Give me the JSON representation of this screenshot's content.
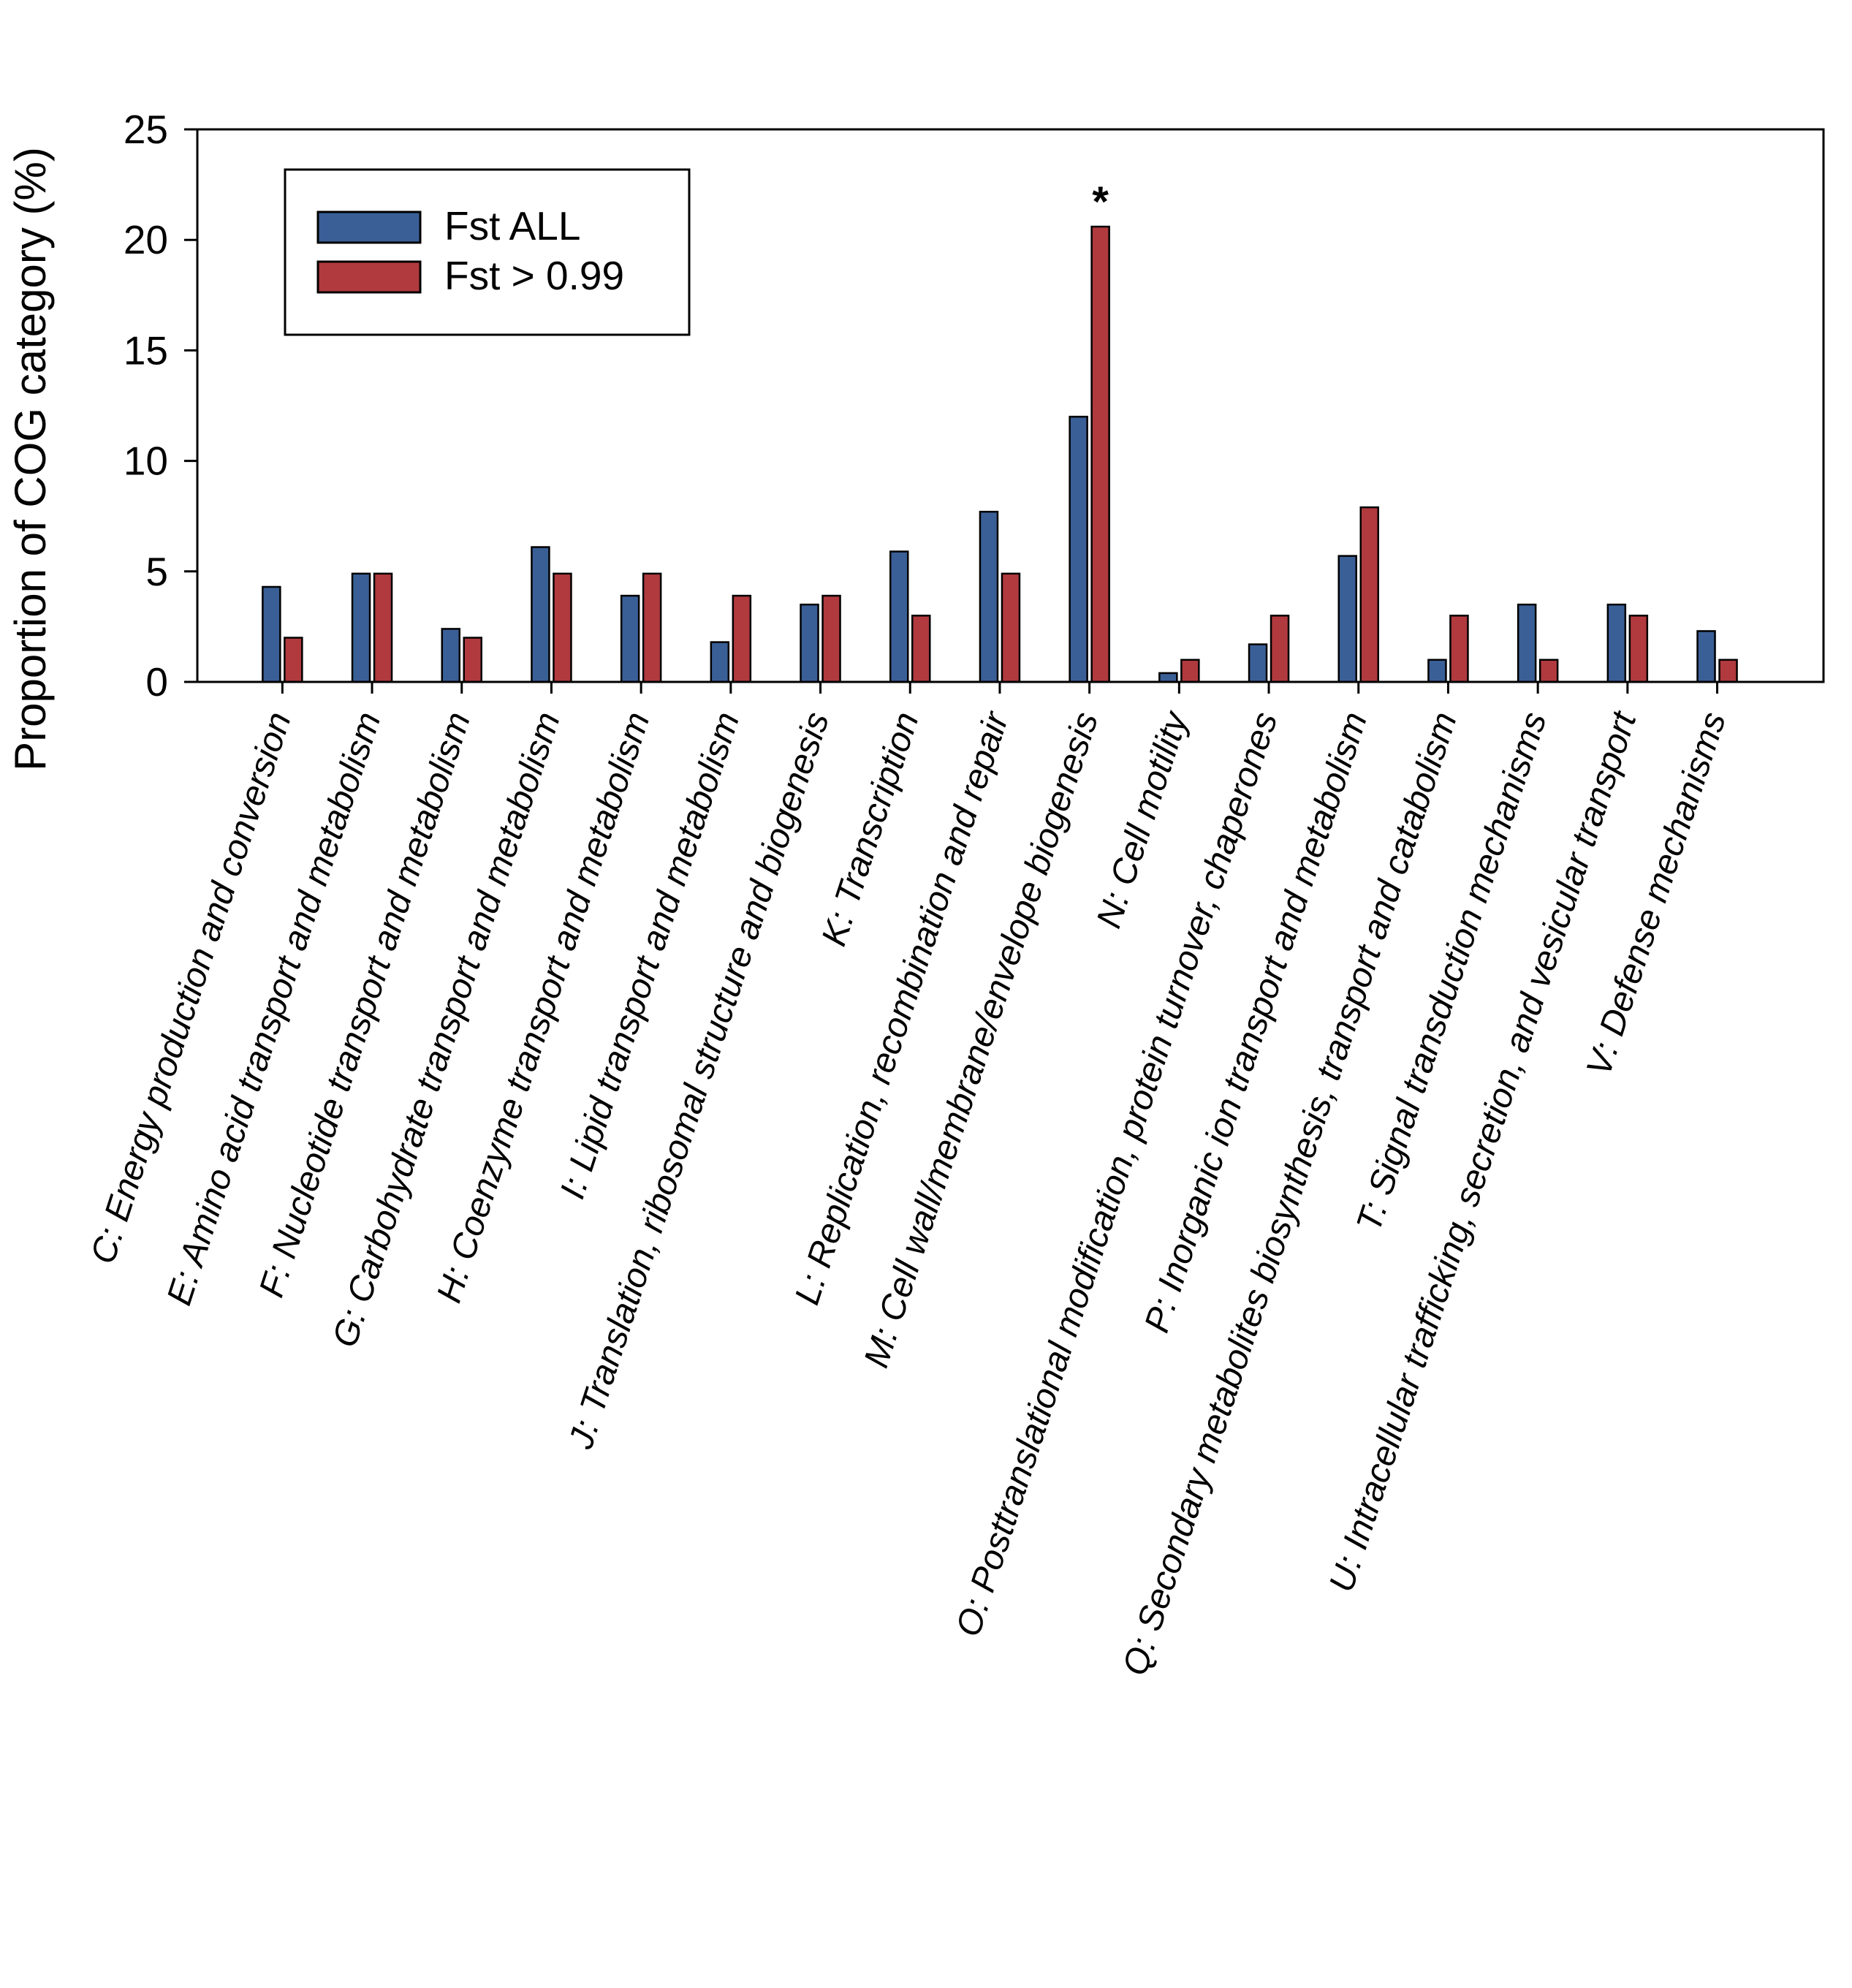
{
  "chart_data": {
    "type": "bar",
    "title": "",
    "xlabel": "",
    "ylabel": "Proportion of COG category (%)",
    "ylim": [
      0,
      25
    ],
    "yticks": [
      "0",
      "5",
      "10",
      "15",
      "20",
      "25"
    ],
    "categories": [
      "C: Energy production and conversion",
      "E: Amino acid transport and metabolism",
      "F: Nucleotide transport and metabolism",
      "G: Carbohydrate transport and metabolism",
      "H: Coenzyme transport and metabolism",
      "I: Lipid transport and metabolism",
      "J: Translation, ribosomal structure and biogenesis",
      "K: Transcription",
      "L: Replication,  recombination and repair",
      "M: Cell wall/membrane/envelope biogenesis",
      "N: Cell motility",
      "O: Posttranslational modification, protein turnover,  chaperones",
      "P: Inorganic ion transport and metabolism",
      "Q: Secondary metabolites biosynthesis, transport and catabolism",
      "T:  Signal transduction mechanisms",
      "U: Intracellular trafficking, secretion, and vesicular transport",
      "V: Defense mechanisms"
    ],
    "series": [
      {
        "name": "Fst ALL",
        "color": "#3a5f96",
        "values": [
          4.3,
          4.9,
          2.4,
          6.1,
          3.9,
          1.8,
          3.5,
          5.9,
          7.7,
          12.0,
          0.4,
          1.7,
          5.7,
          1.0,
          3.5,
          3.5,
          2.3
        ]
      },
      {
        "name": "Fst > 0.99",
        "color": "#b03a3e",
        "values": [
          2.0,
          4.9,
          2.0,
          4.9,
          4.9,
          3.9,
          3.9,
          3.0,
          4.9,
          20.6,
          1.0,
          3.0,
          7.9,
          3.0,
          1.0,
          3.0,
          1.0
        ]
      }
    ],
    "legend_position": "top-left",
    "annotations": [
      {
        "text": "*",
        "category_index": 9
      }
    ]
  }
}
